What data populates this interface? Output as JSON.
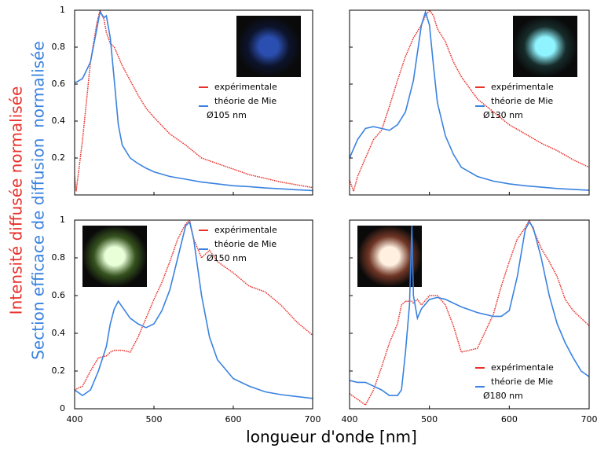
{
  "xlabel": "longueur d'onde [nm]",
  "ylabel_red": "Intensité diffusée normalisée",
  "ylabel_blue": "Section efficace de diffusion  normalisée",
  "chart_data": [
    {
      "type": "line",
      "annotation": "Ø105 nm",
      "legend": "center right",
      "inset": {
        "corner": "upper right",
        "core": "#2b4fb0",
        "halo": "#0d1530"
      },
      "x": [
        400,
        402,
        410,
        420,
        428,
        432,
        437,
        440,
        445,
        450,
        455,
        460,
        470,
        480,
        490,
        500,
        520,
        540,
        560,
        580,
        600,
        620,
        640,
        660,
        680,
        700
      ],
      "series": [
        {
          "name": "expérimentale",
          "color": "#e8302a",
          "values": [
            0.1,
            0.02,
            0.3,
            0.72,
            0.93,
            1,
            0.95,
            0.88,
            0.82,
            0.8,
            0.75,
            0.7,
            0.62,
            0.54,
            0.47,
            0.42,
            0.33,
            0.27,
            0.2,
            0.17,
            0.14,
            0.11,
            0.09,
            0.07,
            0.055,
            0.04
          ]
        },
        {
          "name": "théorie de Mie",
          "color": "#3a82e0",
          "values": [
            0.61,
            0.61,
            0.63,
            0.72,
            0.9,
            0.99,
            0.96,
            0.97,
            0.85,
            0.62,
            0.38,
            0.27,
            0.2,
            0.17,
            0.145,
            0.125,
            0.1,
            0.085,
            0.07,
            0.06,
            0.05,
            0.045,
            0.038,
            0.033,
            0.028,
            0.024
          ]
        }
      ],
      "xlim": [
        400,
        700
      ],
      "ylim": [
        0,
        1
      ],
      "xticks": [
        400,
        500,
        600,
        700
      ],
      "yticks": [
        0.2,
        0.4,
        0.6,
        0.8,
        1
      ],
      "xtick_labels": false,
      "ytick_labels": true
    },
    {
      "type": "line",
      "annotation": "Ø130 nm",
      "legend": "center right",
      "inset": {
        "corner": "upper right",
        "core": "#8ff4ff",
        "halo": "#18302e"
      },
      "x": [
        400,
        405,
        410,
        420,
        430,
        440,
        450,
        460,
        470,
        480,
        490,
        495,
        500,
        505,
        510,
        520,
        530,
        540,
        560,
        580,
        600,
        620,
        640,
        660,
        680,
        700
      ],
      "series": [
        {
          "name": "expérimentale",
          "color": "#e8302a",
          "values": [
            0.08,
            0.02,
            0.1,
            0.2,
            0.3,
            0.35,
            0.48,
            0.62,
            0.75,
            0.85,
            0.92,
            0.97,
            1,
            0.97,
            0.9,
            0.83,
            0.72,
            0.64,
            0.52,
            0.45,
            0.38,
            0.33,
            0.28,
            0.24,
            0.19,
            0.15
          ]
        },
        {
          "name": "théorie de Mie",
          "color": "#3a82e0",
          "values": [
            0.2,
            0.25,
            0.3,
            0.36,
            0.37,
            0.36,
            0.35,
            0.38,
            0.45,
            0.62,
            0.92,
            0.99,
            0.92,
            0.7,
            0.5,
            0.32,
            0.22,
            0.15,
            0.1,
            0.075,
            0.06,
            0.05,
            0.042,
            0.035,
            0.03,
            0.025
          ]
        }
      ],
      "xlim": [
        400,
        700
      ],
      "ylim": [
        0,
        1
      ],
      "xticks": [
        400,
        500,
        600,
        700
      ],
      "yticks": [
        0.2,
        0.4,
        0.6,
        0.8,
        1
      ],
      "xtick_labels": false,
      "ytick_labels": false
    },
    {
      "type": "line",
      "annotation": "Ø150 nm",
      "legend": "upper right",
      "inset": {
        "corner": "upper left",
        "core": "#e8ffd8",
        "halo": "#3a5a20"
      },
      "x": [
        400,
        410,
        420,
        430,
        440,
        445,
        450,
        455,
        460,
        470,
        480,
        490,
        500,
        510,
        520,
        530,
        540,
        545,
        550,
        560,
        570,
        580,
        600,
        620,
        640,
        660,
        680,
        700
      ],
      "series": [
        {
          "name": "expérimentale",
          "color": "#e8302a",
          "values": [
            0.1,
            0.12,
            0.2,
            0.27,
            0.28,
            0.3,
            0.31,
            0.31,
            0.31,
            0.3,
            0.38,
            0.48,
            0.58,
            0.67,
            0.78,
            0.9,
            0.98,
            1,
            0.9,
            0.8,
            0.84,
            0.78,
            0.72,
            0.65,
            0.62,
            0.55,
            0.46,
            0.39
          ]
        },
        {
          "name": "théorie de Mie",
          "color": "#3a82e0",
          "values": [
            0.1,
            0.07,
            0.1,
            0.2,
            0.33,
            0.45,
            0.53,
            0.57,
            0.54,
            0.48,
            0.45,
            0.43,
            0.45,
            0.52,
            0.63,
            0.8,
            0.97,
            0.99,
            0.9,
            0.6,
            0.38,
            0.26,
            0.16,
            0.12,
            0.09,
            0.075,
            0.065,
            0.055
          ]
        }
      ],
      "xlim": [
        400,
        700
      ],
      "ylim": [
        0,
        1
      ],
      "xticks": [
        400,
        500,
        600,
        700
      ],
      "yticks": [
        0,
        0.2,
        0.4,
        0.6,
        0.8,
        1
      ],
      "xtick_labels": true,
      "ytick_labels": true
    },
    {
      "type": "line",
      "annotation": "Ø180 nm",
      "legend": "lower right",
      "inset": {
        "corner": "upper left",
        "core": "#fff0e0",
        "halo": "#7a3a28"
      },
      "x": [
        400,
        410,
        420,
        430,
        440,
        450,
        460,
        465,
        470,
        475,
        478,
        480,
        485,
        490,
        500,
        510,
        520,
        530,
        540,
        560,
        580,
        590,
        600,
        610,
        620,
        625,
        630,
        640,
        650,
        660,
        670,
        680,
        690,
        700
      ],
      "series": [
        {
          "name": "expérimentale",
          "color": "#e8302a",
          "values": [
            0.08,
            0.05,
            0.02,
            0.1,
            0.22,
            0.35,
            0.45,
            0.55,
            0.57,
            0.57,
            0.57,
            0.56,
            0.58,
            0.55,
            0.6,
            0.6,
            0.55,
            0.44,
            0.3,
            0.32,
            0.5,
            0.65,
            0.78,
            0.9,
            0.96,
            1,
            0.95,
            0.85,
            0.78,
            0.7,
            0.58,
            0.52,
            0.48,
            0.44
          ]
        },
        {
          "name": "théorie de Mie",
          "color": "#3a82e0",
          "values": [
            0.15,
            0.14,
            0.14,
            0.12,
            0.1,
            0.07,
            0.07,
            0.1,
            0.3,
            0.55,
            0.97,
            0.6,
            0.48,
            0.53,
            0.58,
            0.59,
            0.58,
            0.56,
            0.54,
            0.51,
            0.49,
            0.49,
            0.52,
            0.7,
            0.95,
            0.99,
            0.96,
            0.8,
            0.6,
            0.45,
            0.35,
            0.27,
            0.2,
            0.17
          ]
        }
      ],
      "xlim": [
        400,
        700
      ],
      "ylim": [
        0,
        1
      ],
      "xticks": [
        400,
        500,
        600,
        700
      ],
      "yticks": [
        0,
        0.2,
        0.4,
        0.6,
        0.8,
        1
      ],
      "xtick_labels": true,
      "ytick_labels": false
    }
  ]
}
